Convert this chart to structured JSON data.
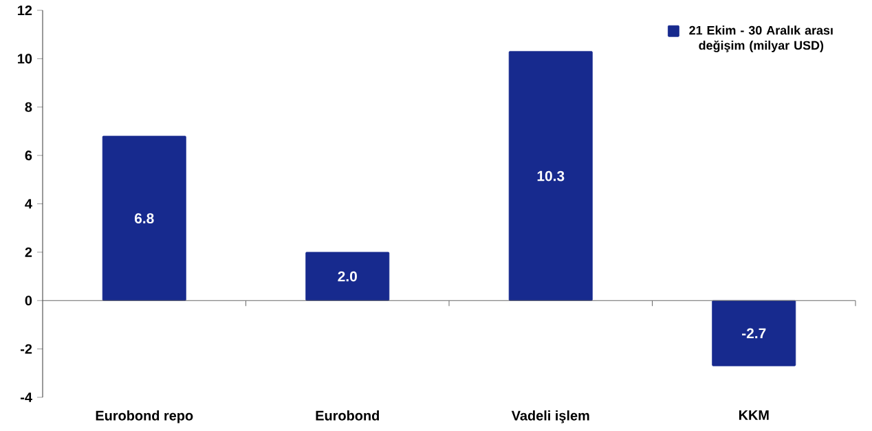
{
  "chart_data": {
    "type": "bar",
    "categories": [
      "Eurobond repo",
      "Eurobond",
      "Vadeli işlem",
      "KKM"
    ],
    "series": [
      {
        "name": "21 Ekim - 30 Aralık arası değişim (milyar USD)",
        "color": "#172a8e",
        "values": [
          6.8,
          2.0,
          10.3,
          -2.7
        ],
        "value_labels": [
          "6.8",
          "2.0",
          "10.3",
          "-2.7"
        ]
      }
    ],
    "ylim": [
      -4,
      12
    ],
    "yticks": [
      -4,
      -2,
      0,
      2,
      4,
      6,
      8,
      10,
      12
    ],
    "legend": "top right"
  }
}
